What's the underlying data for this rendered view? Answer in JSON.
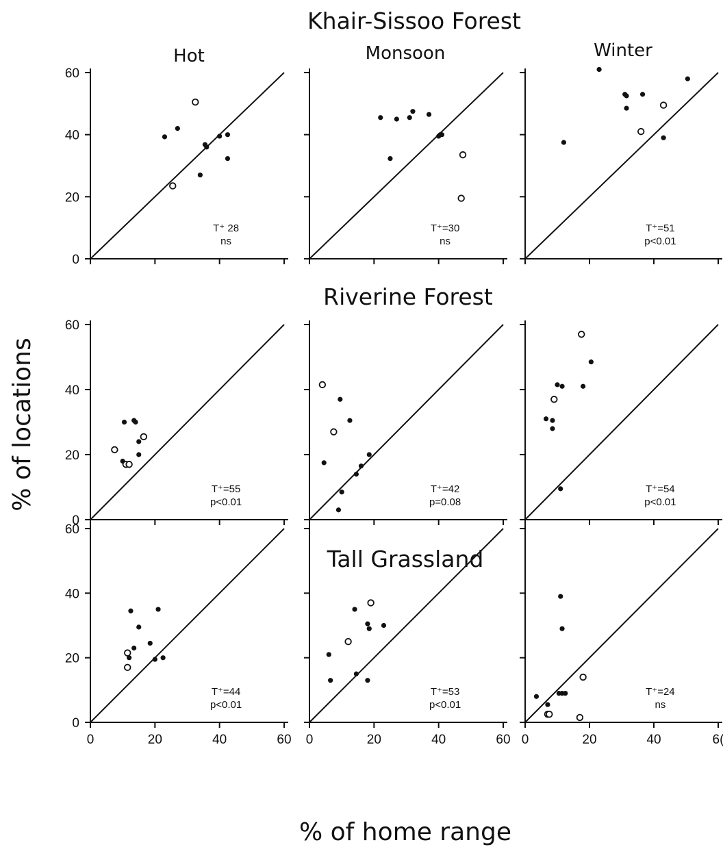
{
  "chart_data": {
    "type": "scatter",
    "ylabel": "% of locations",
    "xlabel": "% of home range",
    "columns": [
      "Hot",
      "Monsoon",
      "Winter"
    ],
    "rows": [
      {
        "title": "Khair-Sissoo Forest",
        "panels": [
          {
            "column": "Hot",
            "y_ticks": [
              "0",
              "20",
              "40",
              "60"
            ],
            "stat_line1": "T⁺ 28",
            "stat_line2": "ns",
            "filled": [
              [
                23,
                39.3
              ],
              [
                27,
                42
              ],
              [
                34,
                27
              ],
              [
                35.5,
                36.8
              ],
              [
                36,
                36
              ],
              [
                40,
                39.5
              ],
              [
                42.5,
                40
              ],
              [
                42.5,
                32.3
              ]
            ],
            "open": [
              [
                25.5,
                23.5
              ],
              [
                32.5,
                50.5
              ]
            ]
          },
          {
            "column": "Monsoon",
            "y_ticks": [],
            "stat_line1": "T⁺=30",
            "stat_line2": "ns",
            "filled": [
              [
                22,
                45.5
              ],
              [
                25,
                32.3
              ],
              [
                27,
                45
              ],
              [
                31,
                45.5
              ],
              [
                32,
                47.5
              ],
              [
                37,
                46.5
              ],
              [
                40,
                39.5
              ],
              [
                40.5,
                40
              ],
              [
                41,
                40
              ]
            ],
            "open": [
              [
                47,
                19.5
              ],
              [
                47.5,
                33.5
              ]
            ]
          },
          {
            "column": "Winter",
            "y_ticks": [],
            "stat_line1": "T⁺=51",
            "stat_line2": "p<0.01",
            "filled": [
              [
                12,
                37.5
              ],
              [
                23,
                61
              ],
              [
                31,
                53
              ],
              [
                31.5,
                52.5
              ],
              [
                31.5,
                48.5
              ],
              [
                36.5,
                53
              ],
              [
                43,
                39
              ],
              [
                50.5,
                58
              ]
            ],
            "open": [
              [
                36,
                41
              ],
              [
                43,
                49.5
              ]
            ]
          }
        ]
      },
      {
        "title": "Riverine Forest",
        "panels": [
          {
            "column": "Hot",
            "y_ticks": [
              "0",
              "20",
              "40",
              "60"
            ],
            "stat_line1": "T⁺=55",
            "stat_line2": "p<0.01",
            "filled": [
              [
                10,
                18
              ],
              [
                10.5,
                30
              ],
              [
                13.5,
                30.5
              ],
              [
                14,
                30
              ],
              [
                15,
                24
              ],
              [
                15,
                20
              ]
            ],
            "open": [
              [
                7.5,
                21.5
              ],
              [
                11,
                17
              ],
              [
                12,
                17
              ],
              [
                16.5,
                25.5
              ]
            ]
          },
          {
            "column": "Monsoon",
            "y_ticks": [],
            "stat_line1": "T⁺=42",
            "stat_line2": "p=0.08",
            "filled": [
              [
                4.5,
                17.5
              ],
              [
                9,
                3
              ],
              [
                9.5,
                37
              ],
              [
                10,
                8.5
              ],
              [
                12.5,
                30.5
              ],
              [
                14.5,
                14
              ],
              [
                16,
                16.5
              ],
              [
                18.5,
                20
              ]
            ],
            "open": [
              [
                4,
                41.5
              ],
              [
                7.5,
                27
              ]
            ]
          },
          {
            "column": "Winter",
            "y_ticks": [],
            "stat_line1": "T⁺=54",
            "stat_line2": "p<0.01",
            "filled": [
              [
                6.5,
                31
              ],
              [
                8.5,
                28
              ],
              [
                8.5,
                30.5
              ],
              [
                10,
                41.5
              ],
              [
                11,
                9.5
              ],
              [
                11.5,
                41
              ],
              [
                18,
                41
              ],
              [
                20.5,
                48.5
              ]
            ],
            "open": [
              [
                9,
                37
              ],
              [
                17.5,
                57
              ]
            ]
          }
        ]
      },
      {
        "title": "Tall Grassland",
        "panels": [
          {
            "column": "Hot",
            "y_ticks": [
              "0",
              "20",
              "40",
              "60"
            ],
            "stat_line1": "T⁺=44",
            "stat_line2": "p<0.01",
            "filled": [
              [
                12,
                20
              ],
              [
                12.5,
                34.5
              ],
              [
                13.5,
                23
              ],
              [
                15,
                29.5
              ],
              [
                18.5,
                24.5
              ],
              [
                20,
                19.5
              ],
              [
                21,
                35
              ],
              [
                22.5,
                20
              ]
            ],
            "open": [
              [
                11.5,
                21.5
              ],
              [
                11.5,
                17
              ]
            ]
          },
          {
            "column": "Monsoon",
            "y_ticks": [],
            "stat_line1": "T⁺=53",
            "stat_line2": "p<0.01",
            "filled": [
              [
                6,
                21
              ],
              [
                6.5,
                13
              ],
              [
                14,
                35
              ],
              [
                14.5,
                15
              ],
              [
                18,
                30.5
              ],
              [
                18.5,
                29
              ],
              [
                18,
                13
              ],
              [
                23,
                30
              ]
            ],
            "open": [
              [
                12,
                25
              ],
              [
                19,
                37
              ]
            ]
          },
          {
            "column": "Winter",
            "y_ticks": [],
            "stat_line1": "T⁺=24",
            "stat_line2": "ns",
            "filled": [
              [
                3.5,
                8
              ],
              [
                7,
                5.5
              ],
              [
                10.5,
                9
              ],
              [
                11,
                39
              ],
              [
                11.5,
                9
              ],
              [
                11.5,
                29
              ],
              [
                12.5,
                9
              ]
            ],
            "open": [
              [
                7,
                2.5
              ],
              [
                7.5,
                2.5
              ],
              [
                17,
                1.5
              ],
              [
                18,
                14
              ]
            ]
          }
        ]
      }
    ],
    "x_ticks": [
      [
        "0",
        "20",
        "40",
        "60"
      ],
      [
        "0",
        "20",
        "40",
        "60"
      ],
      [
        "0",
        "20",
        "40",
        "6("
      ]
    ],
    "xlim": [
      0,
      60
    ],
    "ylim": [
      0,
      60
    ],
    "reference_line": "y = x",
    "marker_legend": {
      "filled": "filled circle",
      "open": "open circle"
    },
    "grid": false,
    "colors": {
      "ink": "#111111",
      "background": "#ffffff"
    }
  }
}
